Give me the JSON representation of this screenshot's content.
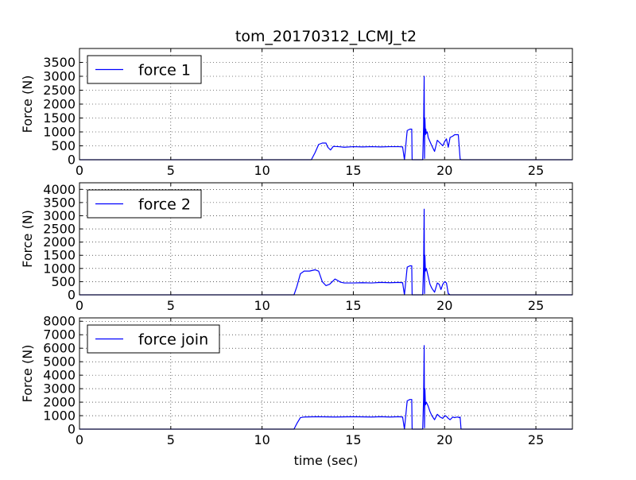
{
  "figure": {
    "title": "tom_20170312_LCMJ_t2",
    "xlabel": "time (sec)"
  },
  "chart_data": [
    {
      "type": "line",
      "ylabel": "Force (N)",
      "xlim": [
        0,
        27
      ],
      "ylim": [
        0,
        4000
      ],
      "xticks": [
        0,
        5,
        10,
        15,
        20,
        25
      ],
      "yticks": [
        0,
        500,
        1000,
        1500,
        2000,
        2500,
        3000,
        3500
      ],
      "grid": true,
      "legend_position": "top-left",
      "series": [
        {
          "name": "force 1",
          "color": "#0000ff",
          "x": [
            0,
            12.7,
            12.9,
            13.1,
            13.3,
            13.5,
            13.6,
            13.75,
            13.9,
            14.2,
            14.5,
            15,
            15.5,
            16,
            16.5,
            17,
            17.5,
            17.7,
            17.8,
            17.95,
            18.1,
            18.2,
            18.22,
            18.8,
            18.85,
            18.88,
            18.9,
            18.92,
            18.95,
            18.97,
            19.0,
            19.05,
            19.1,
            19.2,
            19.3,
            19.45,
            19.6,
            19.75,
            19.9,
            20.0,
            20.1,
            20.2,
            20.3,
            20.45,
            20.55,
            20.65,
            20.75,
            20.85,
            20.9,
            27
          ],
          "y": [
            0,
            0,
            250,
            550,
            600,
            600,
            450,
            350,
            480,
            470,
            450,
            470,
            460,
            470,
            460,
            470,
            470,
            460,
            0,
            1050,
            1100,
            1100,
            0,
            0,
            1200,
            3000,
            50,
            1500,
            900,
            1100,
            950,
            1000,
            800,
            650,
            500,
            300,
            700,
            600,
            500,
            650,
            750,
            450,
            800,
            850,
            900,
            900,
            900,
            30,
            0,
            0
          ]
        }
      ]
    },
    {
      "type": "line",
      "ylabel": "Force (N)",
      "xlim": [
        0,
        27
      ],
      "ylim": [
        0,
        4250
      ],
      "xticks": [
        0,
        5,
        10,
        15,
        20,
        25
      ],
      "yticks": [
        0,
        500,
        1000,
        1500,
        2000,
        2500,
        3000,
        3500,
        4000
      ],
      "grid": true,
      "legend_position": "top-left",
      "series": [
        {
          "name": "force 2",
          "color": "#0000ff",
          "x": [
            0,
            11.75,
            11.9,
            12.1,
            12.3,
            12.6,
            12.9,
            13.1,
            13.3,
            13.5,
            13.7,
            14.0,
            14.3,
            14.5,
            15.0,
            15.5,
            16.0,
            16.5,
            17.0,
            17.5,
            17.7,
            17.8,
            17.95,
            18.1,
            18.2,
            18.22,
            18.8,
            18.85,
            18.88,
            18.9,
            18.92,
            18.95,
            19.0,
            19.1,
            19.2,
            19.3,
            19.45,
            19.6,
            19.7,
            19.8,
            19.9,
            20.0,
            20.1,
            20.2,
            20.3,
            27
          ],
          "y": [
            0,
            0,
            300,
            800,
            900,
            900,
            950,
            900,
            500,
            350,
            400,
            600,
            480,
            450,
            450,
            460,
            450,
            470,
            460,
            470,
            460,
            0,
            1050,
            1100,
            1100,
            0,
            0,
            1100,
            3250,
            50,
            1500,
            900,
            1000,
            700,
            400,
            250,
            100,
            450,
            400,
            200,
            400,
            500,
            450,
            50,
            0,
            0
          ]
        }
      ]
    },
    {
      "type": "line",
      "ylabel": "Force (N)",
      "xlim": [
        0,
        27
      ],
      "ylim": [
        0,
        8250
      ],
      "xticks": [
        0,
        5,
        10,
        15,
        20,
        25
      ],
      "yticks": [
        0,
        1000,
        2000,
        3000,
        4000,
        5000,
        6000,
        7000,
        8000
      ],
      "grid": true,
      "legend_position": "top-left",
      "series": [
        {
          "name": "force join",
          "color": "#0000ff",
          "x": [
            0,
            11.75,
            11.9,
            12.1,
            12.3,
            13,
            14,
            15,
            16,
            16.5,
            17,
            17.5,
            17.7,
            17.8,
            17.95,
            18.1,
            18.2,
            18.22,
            18.8,
            18.85,
            18.88,
            18.9,
            18.92,
            18.95,
            19.0,
            19.1,
            19.2,
            19.3,
            19.45,
            19.6,
            19.75,
            19.9,
            20.0,
            20.1,
            20.2,
            20.3,
            20.45,
            20.55,
            20.7,
            20.8,
            20.85,
            20.9,
            27
          ],
          "y": [
            0,
            0,
            400,
            850,
            900,
            920,
            900,
            920,
            900,
            920,
            900,
            920,
            900,
            0,
            2100,
            2200,
            2200,
            0,
            0,
            2300,
            6200,
            100,
            3000,
            1800,
            2000,
            1700,
            1300,
            1000,
            700,
            1100,
            900,
            800,
            1000,
            950,
            800,
            700,
            900,
            850,
            900,
            850,
            900,
            0,
            0
          ]
        }
      ]
    }
  ]
}
